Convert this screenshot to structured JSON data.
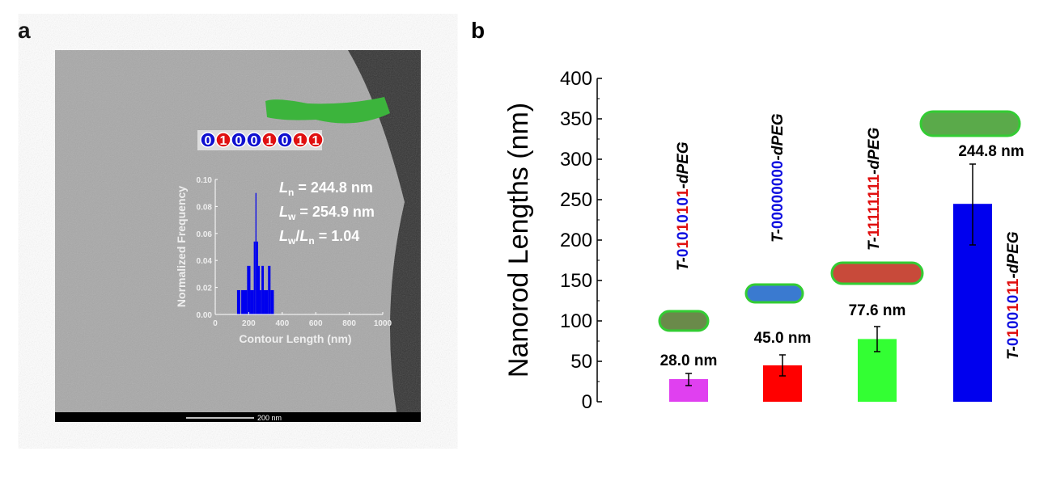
{
  "panel_a": {
    "label": "a",
    "sequence": [
      "0",
      "1",
      "0",
      "0",
      "1",
      "0",
      "1",
      "1"
    ],
    "sequence_colors": {
      "0": "#1010d0",
      "1": "#e01010"
    },
    "stats": [
      {
        "sym": "L",
        "sub": "n",
        "text": " = 244.8 nm"
      },
      {
        "sym": "L",
        "sub": "w",
        "text": " = 254.9 nm"
      },
      {
        "sym": "L",
        "sub": "w",
        "text2": "/",
        "sym2": "L",
        "sub2": "n",
        "text": " = 1.04"
      }
    ],
    "scale_bar_label": "200 nm"
  },
  "panel_b": {
    "label": "b"
  },
  "chart_data": [
    {
      "type": "bar",
      "subtype": "histogram-inset",
      "xlabel": "Contour Length (nm)",
      "ylabel": "Normalized Frequency",
      "xlim": [
        0,
        1000
      ],
      "ylim": [
        0,
        0.1
      ],
      "xticks": [
        "0",
        "200",
        "400",
        "600",
        "800",
        "1000"
      ],
      "yticks": [
        "0.00",
        "0.02",
        "0.04",
        "0.06",
        "0.08",
        "0.10"
      ],
      "color": "#0000ee",
      "bins": [
        {
          "from": 130,
          "to": 150,
          "value": 0.018
        },
        {
          "from": 155,
          "to": 190,
          "value": 0.018
        },
        {
          "from": 190,
          "to": 210,
          "value": 0.036
        },
        {
          "from": 210,
          "to": 230,
          "value": 0.018
        },
        {
          "from": 230,
          "to": 240,
          "value": 0.054
        },
        {
          "from": 240,
          "to": 246,
          "value": 0.09
        },
        {
          "from": 246,
          "to": 256,
          "value": 0.054
        },
        {
          "from": 256,
          "to": 266,
          "value": 0.036
        },
        {
          "from": 266,
          "to": 276,
          "value": 0.018
        },
        {
          "from": 276,
          "to": 290,
          "value": 0.036
        },
        {
          "from": 290,
          "to": 315,
          "value": 0.018
        },
        {
          "from": 315,
          "to": 330,
          "value": 0.036
        },
        {
          "from": 330,
          "to": 350,
          "value": 0.018
        }
      ]
    },
    {
      "type": "bar",
      "ylabel": "Nanorod Lengths (nm)",
      "ylim": [
        0,
        400
      ],
      "yticks": [
        "0",
        "50",
        "100",
        "150",
        "200",
        "250",
        "300",
        "350",
        "400"
      ],
      "bars": [
        {
          "seq": "01010101",
          "value": 28.0,
          "err_low": 20,
          "err_high": 35,
          "color": "#e040f0",
          "label": "28.0 nm"
        },
        {
          "seq": "00000000",
          "value": 45.0,
          "err_low": 32,
          "err_high": 58,
          "color": "#ff0000",
          "label": "45.0 nm"
        },
        {
          "seq": "11111111",
          "value": 77.6,
          "err_low": 62,
          "err_high": 93,
          "color": "#33ff33",
          "label": "77.6 nm"
        },
        {
          "seq": "01001011",
          "value": 244.8,
          "err_low": 194,
          "err_high": 294,
          "color": "#0000ee",
          "label": "244.8 nm"
        }
      ],
      "name_prefix": "T-",
      "name_suffix": "-dPEG",
      "digit_colors": {
        "0": "#1010e0",
        "1": "#e01010"
      }
    }
  ]
}
